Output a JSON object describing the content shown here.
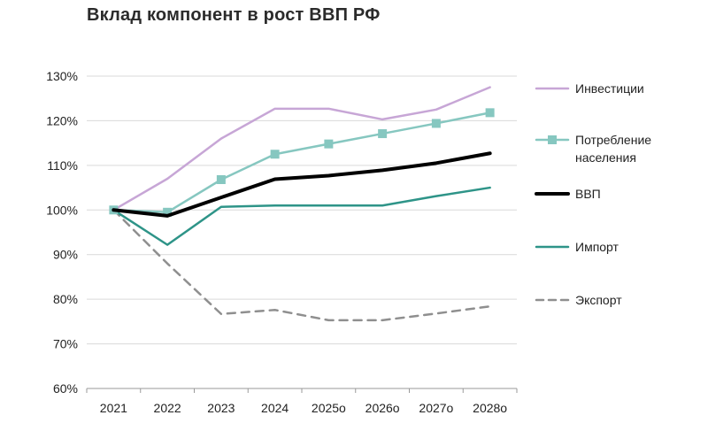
{
  "chart_data": {
    "type": "line",
    "title": "Вклад компонент в рост ВВП РФ",
    "xlabel": "",
    "ylabel": "",
    "categories": [
      "2021",
      "2022",
      "2023",
      "2024",
      "2025о",
      "2026о",
      "2027о",
      "2028о"
    ],
    "y_ticks": [
      "60%",
      "70%",
      "80%",
      "90%",
      "100%",
      "110%",
      "120%",
      "130%"
    ],
    "ylim": [
      60,
      130
    ],
    "grid": "horizontal",
    "legend_position": "right",
    "series": [
      {
        "name": "Инвестиции",
        "legend_lines": [
          "Инвестиции"
        ],
        "values": [
          100,
          107,
          116,
          122.7,
          122.7,
          120.3,
          122.5,
          127.5
        ],
        "color": "#c7a6d6",
        "style": "solid",
        "marker": "none"
      },
      {
        "name": "Потребление населения",
        "legend_lines": [
          "Потребление",
          "населения"
        ],
        "values": [
          100,
          99.5,
          106.8,
          112.5,
          114.8,
          117.1,
          119.4,
          121.8
        ],
        "color": "#86c7c0",
        "style": "solid",
        "marker": "square"
      },
      {
        "name": "ВВП",
        "legend_lines": [
          "ВВП"
        ],
        "values": [
          100,
          98.7,
          102.8,
          106.9,
          107.7,
          108.9,
          110.5,
          112.7
        ],
        "color": "#000000",
        "style": "bold",
        "marker": "none"
      },
      {
        "name": "Импорт",
        "legend_lines": [
          "Импорт"
        ],
        "values": [
          100,
          92.2,
          100.7,
          101,
          101,
          101,
          103.1,
          105
        ],
        "color": "#2e9488",
        "style": "solid",
        "marker": "none"
      },
      {
        "name": "Экспорт",
        "legend_lines": [
          "Экспорт"
        ],
        "values": [
          100,
          88,
          76.7,
          77.6,
          75.3,
          75.3,
          76.8,
          78.4
        ],
        "color": "#8f8f8f",
        "style": "dashed",
        "marker": "none"
      }
    ]
  }
}
